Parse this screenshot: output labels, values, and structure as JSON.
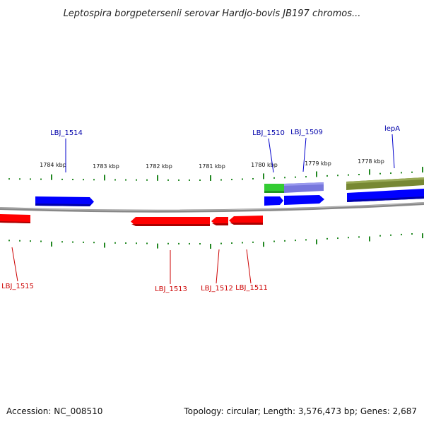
{
  "title": "Leptospira borgpetersenii serovar Hardjo-bovis JB197 chromos...",
  "footer": {
    "accession": "Accession: NC_008510",
    "summary": "Topology: circular; Length: 3,576,473 bp; Genes: 2,687"
  },
  "scale": {
    "unit": "kbp",
    "labels": [
      "1784 kbp",
      "1783 kbp",
      "1782 kbp",
      "1781 kbp",
      "1780 kbp",
      "1779 kbp",
      "1778 kbp"
    ]
  },
  "genes_forward": [
    {
      "name": "LBJ_1514",
      "color": "#0000cc"
    },
    {
      "name": "LBJ_1510",
      "color": "#0000cc"
    },
    {
      "name": "LBJ_1509",
      "color": "#0000cc"
    },
    {
      "name": "lepA",
      "color": "#0000cc"
    }
  ],
  "genes_reverse": [
    {
      "name": "LBJ_1515",
      "color": "#cc0000"
    },
    {
      "name": "LBJ_1513",
      "color": "#cc0000"
    },
    {
      "name": "LBJ_1512",
      "color": "#cc0000"
    },
    {
      "name": "LBJ_1511",
      "color": "#cc0000"
    }
  ],
  "colors": {
    "forward_cds": "#0000ff",
    "reverse_cds": "#ff0000",
    "rna_green": "#33cc33",
    "feature_purple": "#7777dd",
    "feature_olive": "#778833",
    "backbone": "#888888",
    "ticks": "#228822",
    "forward_label": "#0000aa",
    "reverse_label": "#cc0000"
  }
}
